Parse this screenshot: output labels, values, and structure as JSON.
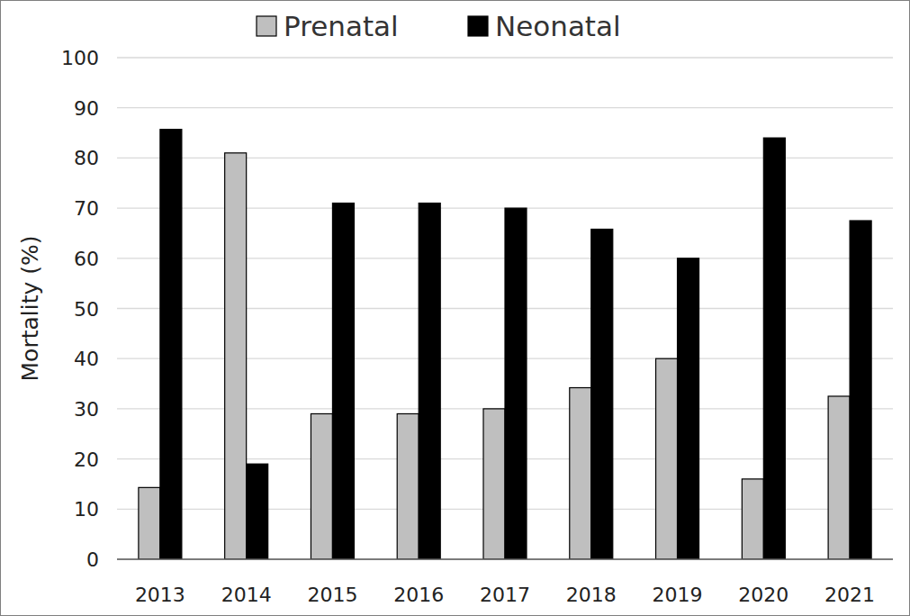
{
  "chart_data": {
    "type": "bar",
    "y_label": "Mortality (%)",
    "categories": [
      "2013",
      "2014",
      "2015",
      "2016",
      "2017",
      "2018",
      "2019",
      "2020",
      "2021"
    ],
    "series": [
      {
        "name": "Prenatal",
        "color": "#bfbfbf",
        "values": [
          14.3,
          81,
          29,
          29,
          30,
          34.2,
          40,
          16,
          32.5
        ]
      },
      {
        "name": "Neonatal",
        "color": "#000000",
        "values": [
          85.7,
          19,
          71,
          71,
          70,
          65.8,
          60,
          84,
          67.5
        ]
      }
    ],
    "ylim": [
      0,
      100
    ],
    "yticks": [
      0,
      10,
      20,
      30,
      40,
      50,
      60,
      70,
      80,
      90,
      100
    ],
    "grid": true,
    "legend": "top"
  }
}
